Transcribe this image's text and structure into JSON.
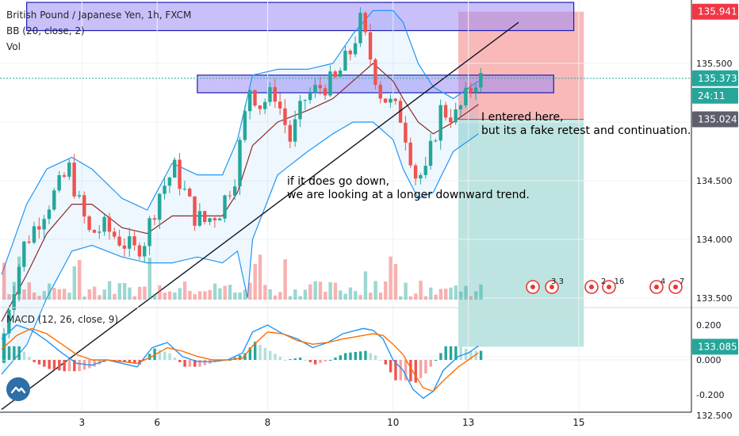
{
  "header": {
    "title": "British Pound / Japanese Yen, 1h, FXCM",
    "bb_label": "BB (20, close, 2)",
    "vol_label": "Vol",
    "macd_label": "MACD (12, 26, close, 9)"
  },
  "annotations": {
    "entry_line1": "I entered here,",
    "entry_line2": "but its a fake retest and continuation.",
    "down_line1": "if it does go down,",
    "down_line2": "we are looking at a longer downward trend."
  },
  "price_badges": [
    {
      "label": "135.941",
      "color": "#f23645"
    },
    {
      "label": "135.373",
      "color": "#26a69a"
    },
    {
      "label": "24:11",
      "color": "#26a69a"
    },
    {
      "label": "135.024",
      "color": "#5d606b"
    },
    {
      "label": "133.085",
      "color": "#26a69a"
    }
  ],
  "events": [
    {
      "label": "3 3"
    },
    {
      "label": "2"
    },
    {
      "label": "16"
    },
    {
      "label": "4"
    },
    {
      "label": "7"
    }
  ],
  "colors": {
    "up": "#26a69a",
    "down": "#ef5350",
    "bb_band": "#2196f3",
    "bb_basis": "#8b2a2a",
    "macd": "#2196f3",
    "signal": "#ff6d00",
    "zone_fill": "#9c8cf5",
    "zone_border": "#1c1cb0",
    "stop": "#f7a1a1",
    "target": "#b2dfdb"
  },
  "chart_data": [
    {
      "type": "candlestick",
      "title": "British Pound / Japanese Yen, 1h, FXCM",
      "x_ticks": [
        "3",
        "6",
        "8",
        "10",
        "13",
        "15"
      ],
      "y_ticks": [
        "135.500",
        "135.000",
        "134.500",
        "134.000",
        "133.500",
        "132.500"
      ],
      "ylim": [
        132.5,
        136.2
      ],
      "price_path": [
        [
          0,
          132.95
        ],
        [
          2,
          133.45
        ],
        [
          5,
          133.95
        ],
        [
          9,
          134.25
        ],
        [
          12,
          134.45
        ],
        [
          14,
          134.6
        ],
        [
          16,
          134.3
        ],
        [
          18,
          134.05
        ],
        [
          21,
          134.1
        ],
        [
          24,
          134.0
        ],
        [
          27,
          133.9
        ],
        [
          29,
          134.0
        ],
        [
          32,
          134.4
        ],
        [
          35,
          134.6
        ],
        [
          37,
          134.4
        ],
        [
          39,
          134.2
        ],
        [
          41,
          134.15
        ],
        [
          44,
          134.25
        ],
        [
          47,
          134.55
        ],
        [
          50,
          135.3
        ],
        [
          52,
          135.15
        ],
        [
          55,
          135.25
        ],
        [
          58,
          134.85
        ],
        [
          61,
          135.2
        ],
        [
          64,
          135.3
        ],
        [
          67,
          135.35
        ],
        [
          70,
          135.6
        ],
        [
          72,
          135.85
        ],
        [
          74,
          135.55
        ],
        [
          76,
          135.25
        ],
        [
          78,
          135.15
        ],
        [
          80,
          135.05
        ],
        [
          81,
          134.9
        ],
        [
          83,
          134.55
        ],
        [
          85,
          134.55
        ],
        [
          86,
          134.75
        ],
        [
          88,
          135.1
        ],
        [
          91,
          135.05
        ],
        [
          93,
          135.2
        ],
        [
          95,
          135.37
        ]
      ],
      "bb": {
        "period": 20,
        "mult": 2,
        "upper": [
          [
            0,
            133.7
          ],
          [
            5,
            134.3
          ],
          [
            9,
            134.6
          ],
          [
            14,
            134.7
          ],
          [
            18,
            134.6
          ],
          [
            24,
            134.35
          ],
          [
            29,
            134.25
          ],
          [
            34,
            134.65
          ],
          [
            39,
            134.55
          ],
          [
            44,
            134.55
          ],
          [
            47,
            134.85
          ],
          [
            50,
            135.4
          ],
          [
            55,
            135.45
          ],
          [
            61,
            135.45
          ],
          [
            66,
            135.5
          ],
          [
            70,
            135.75
          ],
          [
            74,
            135.95
          ],
          [
            78,
            135.95
          ],
          [
            80,
            135.85
          ],
          [
            83,
            135.5
          ],
          [
            86,
            135.3
          ],
          [
            90,
            135.2
          ],
          [
            95,
            135.35
          ]
        ],
        "basis": [
          [
            0,
            133.3
          ],
          [
            5,
            133.7
          ],
          [
            9,
            134.05
          ],
          [
            14,
            134.3
          ],
          [
            18,
            134.3
          ],
          [
            24,
            134.1
          ],
          [
            29,
            134.05
          ],
          [
            34,
            134.2
          ],
          [
            39,
            134.2
          ],
          [
            44,
            134.2
          ],
          [
            47,
            134.4
          ],
          [
            50,
            134.8
          ],
          [
            55,
            135.0
          ],
          [
            61,
            135.1
          ],
          [
            66,
            135.2
          ],
          [
            70,
            135.35
          ],
          [
            74,
            135.5
          ],
          [
            78,
            135.35
          ],
          [
            80,
            135.2
          ],
          [
            83,
            135.0
          ],
          [
            86,
            134.9
          ],
          [
            90,
            135.0
          ],
          [
            95,
            135.15
          ]
        ],
        "lower": [
          [
            0,
            132.85
          ],
          [
            5,
            133.1
          ],
          [
            9,
            133.5
          ],
          [
            14,
            133.9
          ],
          [
            18,
            133.95
          ],
          [
            24,
            133.85
          ],
          [
            29,
            133.8
          ],
          [
            34,
            133.8
          ],
          [
            39,
            133.85
          ],
          [
            44,
            133.8
          ],
          [
            47,
            133.9
          ],
          [
            49,
            133.5
          ],
          [
            50,
            134.0
          ],
          [
            55,
            134.55
          ],
          [
            61,
            134.75
          ],
          [
            66,
            134.9
          ],
          [
            70,
            135.0
          ],
          [
            74,
            135.0
          ],
          [
            78,
            134.85
          ],
          [
            80,
            134.6
          ],
          [
            83,
            134.35
          ],
          [
            86,
            134.4
          ],
          [
            90,
            134.75
          ],
          [
            95,
            134.9
          ]
        ]
      },
      "trendline": {
        "start": [
          0,
          132.55
        ],
        "end": [
          103,
          135.85
        ]
      },
      "zones": [
        {
          "from": 5,
          "to": 114,
          "low": 135.78,
          "high": 136.02
        },
        {
          "from": 39,
          "to": 110,
          "low": 135.25,
          "high": 135.4
        }
      ],
      "position": {
        "from": 91,
        "to": 116,
        "entry": 135.024,
        "stop": 135.941,
        "target": 133.085
      }
    },
    {
      "type": "histogram",
      "title": "Vol",
      "seed": 7,
      "count": 96
    },
    {
      "type": "line",
      "title": "MACD (12, 26, close, 9)",
      "y_ticks": [
        "0.200",
        "0.000",
        "-0.200"
      ],
      "ylim": [
        -0.26,
        0.25
      ],
      "macd": [
        [
          0,
          0.12
        ],
        [
          3,
          0.2
        ],
        [
          6,
          0.17
        ],
        [
          9,
          0.11
        ],
        [
          12,
          0.04
        ],
        [
          15,
          -0.02
        ],
        [
          18,
          -0.03
        ],
        [
          21,
          0.0
        ],
        [
          24,
          -0.02
        ],
        [
          27,
          -0.04
        ],
        [
          30,
          0.07
        ],
        [
          33,
          0.1
        ],
        [
          36,
          0.02
        ],
        [
          39,
          -0.01
        ],
        [
          42,
          -0.01
        ],
        [
          45,
          0.0
        ],
        [
          48,
          0.04
        ],
        [
          50,
          0.16
        ],
        [
          53,
          0.2
        ],
        [
          56,
          0.15
        ],
        [
          59,
          0.12
        ],
        [
          62,
          0.07
        ],
        [
          65,
          0.1
        ],
        [
          68,
          0.15
        ],
        [
          72,
          0.18
        ],
        [
          74,
          0.17
        ],
        [
          76,
          0.12
        ],
        [
          78,
          0.0
        ],
        [
          80,
          -0.06
        ],
        [
          82,
          -0.17
        ],
        [
          84,
          -0.22
        ],
        [
          86,
          -0.18
        ],
        [
          88,
          -0.06
        ],
        [
          91,
          0.02
        ],
        [
          93,
          0.04
        ],
        [
          95,
          0.08
        ]
      ],
      "signal": [
        [
          0,
          0.06
        ],
        [
          3,
          0.14
        ],
        [
          6,
          0.18
        ],
        [
          9,
          0.15
        ],
        [
          12,
          0.09
        ],
        [
          15,
          0.03
        ],
        [
          18,
          0.0
        ],
        [
          21,
          0.0
        ],
        [
          24,
          -0.01
        ],
        [
          27,
          -0.02
        ],
        [
          30,
          0.02
        ],
        [
          33,
          0.07
        ],
        [
          36,
          0.05
        ],
        [
          39,
          0.02
        ],
        [
          42,
          0.0
        ],
        [
          45,
          0.0
        ],
        [
          48,
          0.01
        ],
        [
          50,
          0.08
        ],
        [
          53,
          0.16
        ],
        [
          56,
          0.15
        ],
        [
          59,
          0.11
        ],
        [
          62,
          0.09
        ],
        [
          65,
          0.1
        ],
        [
          68,
          0.12
        ],
        [
          72,
          0.14
        ],
        [
          74,
          0.15
        ],
        [
          76,
          0.14
        ],
        [
          78,
          0.09
        ],
        [
          80,
          0.03
        ],
        [
          82,
          -0.07
        ],
        [
          84,
          -0.16
        ],
        [
          86,
          -0.18
        ],
        [
          88,
          -0.12
        ],
        [
          91,
          -0.04
        ],
        [
          93,
          0.0
        ],
        [
          95,
          0.04
        ]
      ]
    }
  ]
}
